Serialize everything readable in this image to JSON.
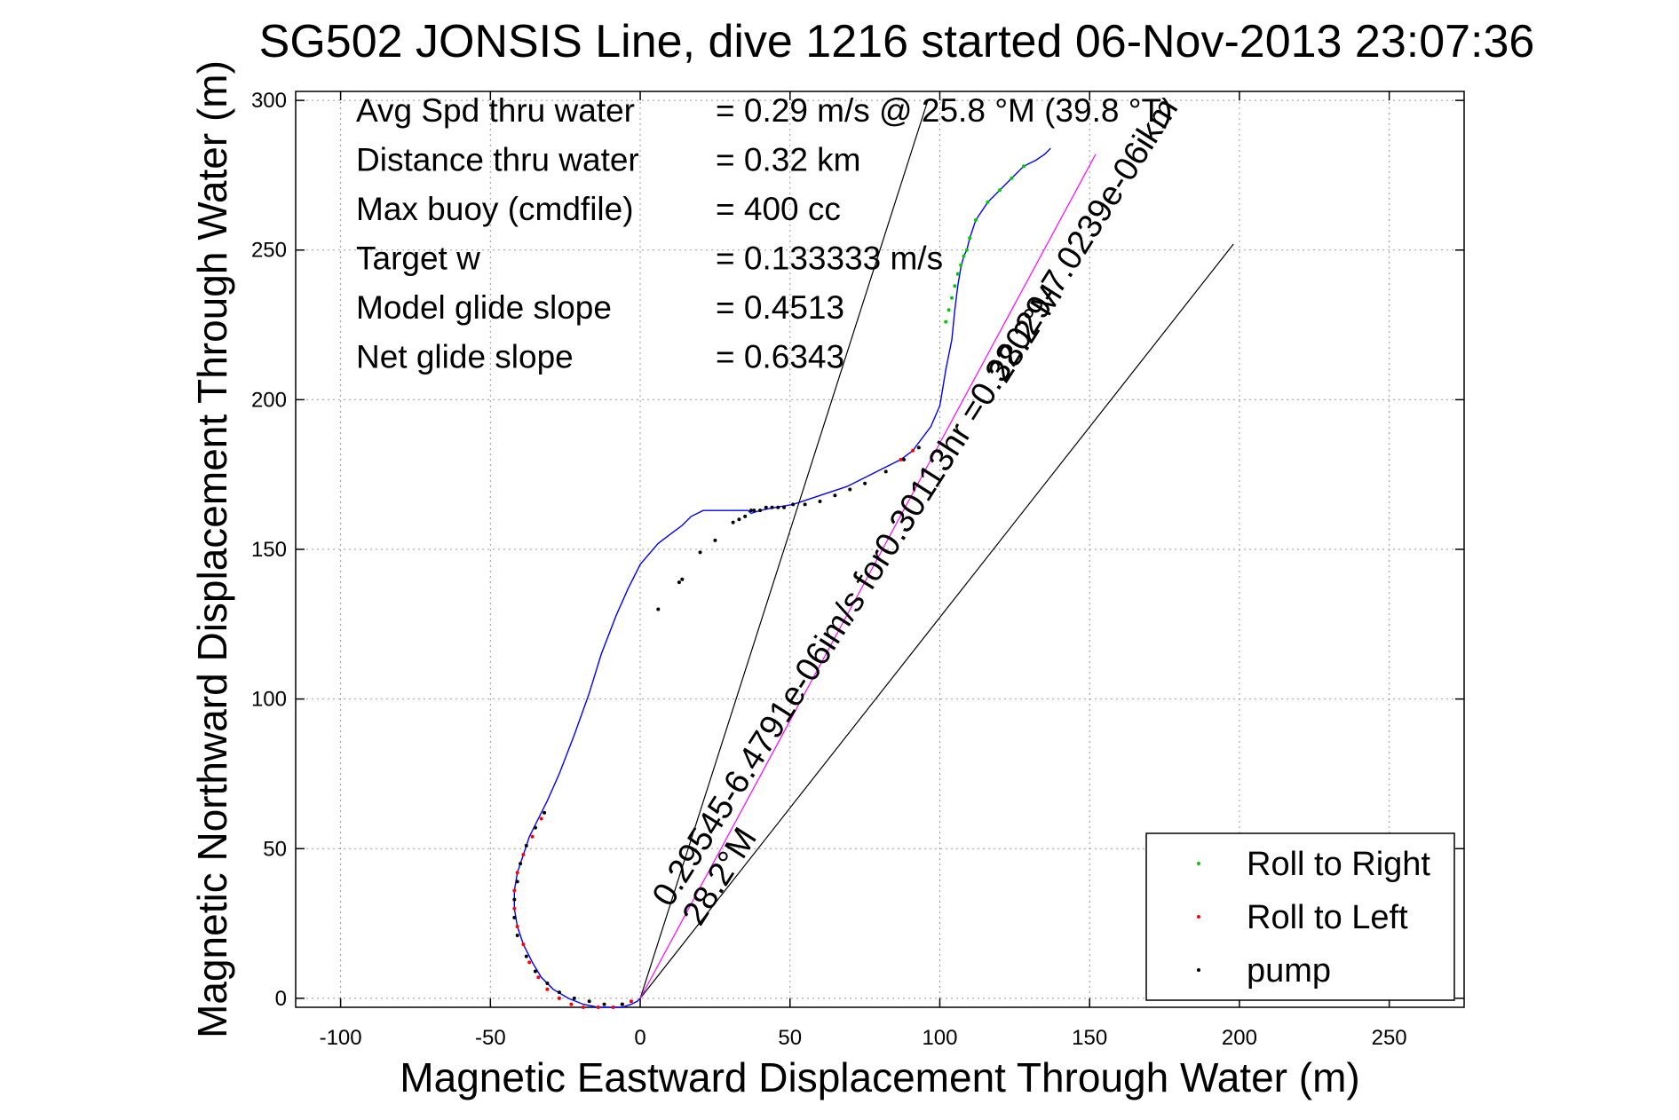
{
  "chart_data": {
    "type": "line",
    "title": "SG502 JONSIS Line, dive 1216 started 06-Nov-2013 23:07:36",
    "xlabel": "Magnetic Eastward Displacement Through Water (m)",
    "ylabel": "Magnetic Northward Displacement Through Water (m)",
    "xlim": [
      -115,
      275
    ],
    "ylim": [
      -3,
      303
    ],
    "xticks": [
      -100,
      -50,
      0,
      50,
      100,
      150,
      200,
      250
    ],
    "yticks": [
      0,
      50,
      100,
      150,
      200,
      250,
      300
    ],
    "grid": true,
    "legend_position": "bottom-right",
    "legend": [
      {
        "label": "Roll to Right",
        "color": "#00cc00"
      },
      {
        "label": "Roll to Left",
        "color": "#ff0000"
      },
      {
        "label": "pump",
        "color": "#000000"
      }
    ],
    "stats": [
      {
        "label": "Avg Spd thru water",
        "value": "=  0.29 m/s @  25.8 °M (39.8 °T)"
      },
      {
        "label": "Distance thru water",
        "value": "=  0.32 km"
      },
      {
        "label": "Max buoy (cmdfile)",
        "value": "= 400 cc"
      },
      {
        "label": "Target w",
        "value": "= 0.133333 m/s"
      },
      {
        "label": "Model glide slope",
        "value": "= 0.4513"
      },
      {
        "label": "Net glide slope",
        "value": "= 0.6343"
      }
    ],
    "annotations": [
      {
        "lines": [
          "0.29545-6.4791e-06im/s for0.30113hr =0.32029-7.0239e-06ikm",
          "28.2°M"
        ],
        "x": 10,
        "y": 30,
        "angle_deg": 57.6
      },
      {
        "lines": [
          "28.2°M"
        ],
        "x": 122,
        "y": 205,
        "angle_deg": 57.6
      }
    ],
    "series": [
      {
        "role": "track",
        "color": "#0000ff",
        "x": [
          0,
          -1,
          -3,
          -6,
          -9,
          -14,
          -19,
          -24,
          -29,
          -33,
          -36,
          -39,
          -41,
          -42,
          -42,
          -41,
          -39,
          -37,
          -34,
          -31,
          -27,
          -22,
          -17,
          -13,
          -8,
          -4,
          0,
          6,
          10,
          14,
          17,
          21,
          25,
          29,
          33,
          36,
          37,
          40,
          45,
          51,
          57,
          63,
          69,
          75,
          81,
          87,
          91,
          94,
          97,
          100,
          101,
          102,
          104,
          105,
          106,
          107,
          108,
          109,
          110,
          112,
          116,
          120,
          124,
          128,
          132,
          135,
          137
        ],
        "y": [
          0,
          -1,
          -2,
          -3,
          -3,
          -3,
          -2,
          0,
          3,
          7,
          12,
          18,
          24,
          30,
          36,
          42,
          48,
          54,
          60,
          66,
          75,
          88,
          102,
          115,
          128,
          137,
          145,
          152,
          155,
          158,
          161,
          163,
          163,
          163,
          163,
          163,
          162,
          163,
          164,
          165,
          167,
          169,
          171,
          174,
          177,
          180,
          183,
          187,
          191,
          198,
          204,
          210,
          220,
          230,
          238,
          244,
          248,
          250,
          254,
          260,
          266,
          270,
          274,
          278,
          280,
          282,
          284
        ]
      },
      {
        "role": "heading-line",
        "color": "#000000",
        "x": [
          0,
          96
        ],
        "y": [
          0,
          300
        ]
      },
      {
        "role": "heading-line",
        "color": "#000000",
        "x": [
          0,
          198
        ],
        "y": [
          0,
          252
        ]
      },
      {
        "role": "current-line",
        "color": "#ff00ff",
        "x": [
          0,
          152
        ],
        "y": [
          0,
          282
        ]
      }
    ],
    "markers": {
      "roll_right": {
        "color": "#00cc00",
        "x": [
          102,
          103,
          104,
          105,
          106,
          107,
          108,
          109,
          110,
          112,
          116,
          120,
          124,
          128
        ],
        "y": [
          226,
          230,
          234,
          238,
          242,
          245,
          248,
          250,
          254,
          260,
          266,
          270,
          274,
          278
        ]
      },
      "roll_left": {
        "color": "#ff0000",
        "x": [
          -33,
          -36,
          -39,
          -41,
          -42,
          -42,
          -41,
          -39,
          -37,
          -34,
          -31,
          -27,
          -23,
          -19,
          -14,
          -9,
          -6,
          -3,
          87,
          91
        ],
        "y": [
          60,
          54,
          48,
          42,
          36,
          30,
          24,
          18,
          12,
          7,
          3,
          0,
          -2,
          -3,
          -3,
          -3,
          -2,
          -1,
          180,
          183
        ]
      },
      "pump": {
        "color": "#000000",
        "x": [
          -32,
          -35,
          -38,
          -40,
          -41,
          -42,
          -42,
          -41,
          -38,
          -35,
          -31,
          -27,
          -22,
          -17,
          -12,
          -6,
          6,
          13,
          14,
          20,
          25,
          31,
          33,
          35,
          37,
          38,
          40,
          42,
          44,
          46,
          48,
          51,
          55,
          60,
          65,
          70,
          75,
          82,
          88,
          93
        ],
        "y": [
          62,
          57,
          51,
          45,
          39,
          33,
          27,
          21,
          14,
          9,
          5,
          2,
          0,
          -1,
          -2,
          -2,
          130,
          139,
          140,
          149,
          153,
          159,
          160,
          161,
          163,
          163,
          163,
          164,
          164,
          164,
          164,
          165,
          165,
          166,
          168,
          170,
          172,
          176,
          180,
          184
        ]
      }
    }
  }
}
